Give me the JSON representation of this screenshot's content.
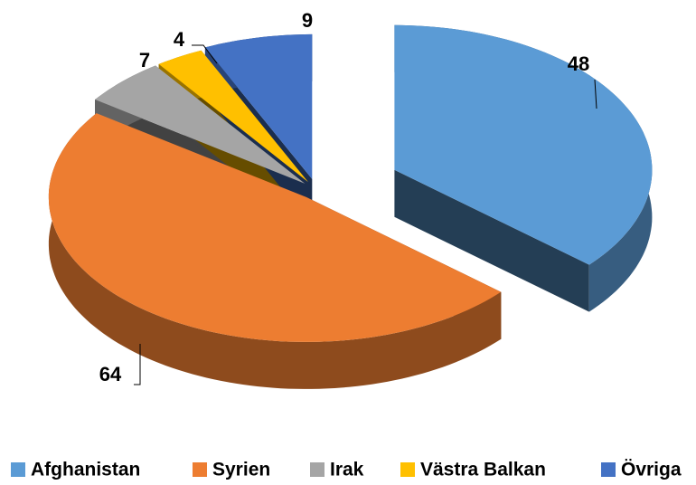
{
  "chart_data": {
    "type": "pie3d",
    "categories": [
      "Afghanistan",
      "Syrien",
      "Irak",
      "Västra Balkan",
      "Övriga"
    ],
    "values": [
      48,
      64,
      7,
      4,
      9
    ],
    "colors": [
      "#5b9bd5",
      "#ed7d31",
      "#a5a5a5",
      "#ffc000",
      "#4472c4"
    ],
    "legend": "bottom"
  }
}
